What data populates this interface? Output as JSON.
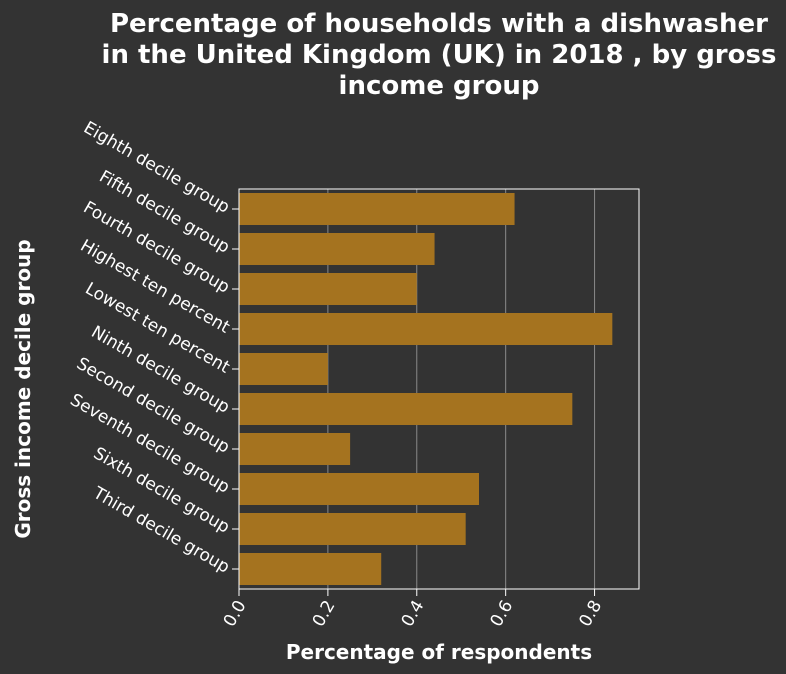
{
  "chart_data": {
    "type": "bar",
    "orientation": "horizontal",
    "title": "Percentage of households with a dishwasher in the United Kingdom (UK) in 2018 , by gross income group",
    "title_lines": [
      "Percentage of households with a dishwasher",
      "in the United Kingdom (UK) in 2018 , by gross",
      "income group"
    ],
    "xlabel": "Percentage of respondents",
    "ylabel": "Gross income decile group",
    "categories": [
      "Eighth decile group",
      "Fifth decile group",
      "Fourth decile group",
      "Highest ten percent",
      "Lowest ten percent",
      "Ninth decile group",
      "Second decile group",
      "Seventh decile group",
      "Sixth decile group",
      "Third decile group"
    ],
    "values": [
      0.62,
      0.44,
      0.4,
      0.84,
      0.2,
      0.75,
      0.25,
      0.54,
      0.51,
      0.32
    ],
    "xlim": [
      0,
      0.9
    ],
    "xticks": [
      0,
      0.2,
      0.4,
      0.6,
      0.8
    ],
    "xtick_labels": [
      "0.0",
      "0.2",
      "0.4",
      "0.6",
      "0.8"
    ],
    "grid": "vertical",
    "legend": "none",
    "colors": {
      "background": "#333333",
      "bar": "#a5731f",
      "text": "#ffffff",
      "grid": "#8a8a8a"
    }
  }
}
